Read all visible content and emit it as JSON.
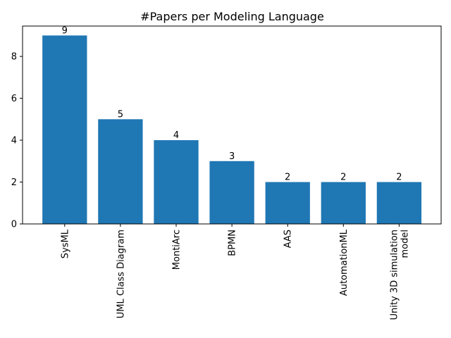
{
  "chart_data": {
    "type": "bar",
    "title": "#Papers per Modeling Language",
    "xlabel": "",
    "ylabel": "",
    "categories": [
      "SysML",
      "UML Class Diagram",
      "MontiArc",
      "BPMN",
      "AAS",
      "AutomationML",
      "Unity 3D simulation\nmodel"
    ],
    "values": [
      9,
      5,
      4,
      3,
      2,
      2,
      2
    ],
    "data_labels": [
      "9",
      "5",
      "4",
      "3",
      "2",
      "2",
      "2"
    ],
    "yticks": [
      0,
      2,
      4,
      6,
      8
    ],
    "ylim": [
      0,
      9.45
    ],
    "grid": false,
    "legend": "none",
    "bar_color": "#1f77b4"
  }
}
